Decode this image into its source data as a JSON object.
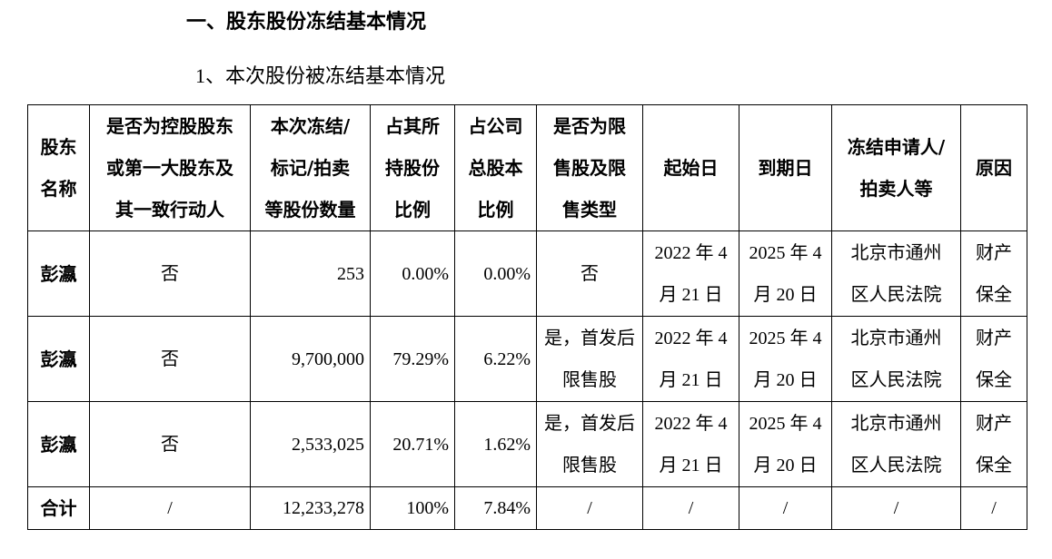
{
  "header": {
    "title": "一、股东股份冻结基本情况",
    "subtitle": "1、本次股份被冻结基本情况"
  },
  "table": {
    "columns": [
      [
        "股东",
        "名称"
      ],
      [
        "是否为控股股东",
        "或第一大股东及",
        "其一致行动人"
      ],
      [
        "本次冻结/",
        "标记/拍卖",
        "等股份数量"
      ],
      [
        "占其所",
        "持股份",
        "比例"
      ],
      [
        "占公司",
        "总股本",
        "比例"
      ],
      [
        "是否为限",
        "售股及限",
        "售类型"
      ],
      [
        "起始日"
      ],
      [
        "到期日"
      ],
      [
        "冻结申请人/",
        "拍卖人等"
      ],
      [
        "原因"
      ]
    ],
    "rows": [
      [
        [
          "彭瀛"
        ],
        [
          "否"
        ],
        [
          "253"
        ],
        [
          "0.00%"
        ],
        [
          "0.00%"
        ],
        [
          "否"
        ],
        [
          "2022 年 4",
          "月 21 日"
        ],
        [
          "2025 年 4",
          "月 20 日"
        ],
        [
          "北京市通州",
          "区人民法院"
        ],
        [
          "财产",
          "保全"
        ]
      ],
      [
        [
          "彭瀛"
        ],
        [
          "否"
        ],
        [
          "9,700,000"
        ],
        [
          "79.29%"
        ],
        [
          "6.22%"
        ],
        [
          "是，首发后",
          "限售股"
        ],
        [
          "2022 年 4",
          "月 21 日"
        ],
        [
          "2025 年 4",
          "月 20 日"
        ],
        [
          "北京市通州",
          "区人民法院"
        ],
        [
          "财产",
          "保全"
        ]
      ],
      [
        [
          "彭瀛"
        ],
        [
          "否"
        ],
        [
          "2,533,025"
        ],
        [
          "20.71%"
        ],
        [
          "1.62%"
        ],
        [
          "是，首发后",
          "限售股"
        ],
        [
          "2022 年 4",
          "月 21 日"
        ],
        [
          "2025 年 4",
          "月 20 日"
        ],
        [
          "北京市通州",
          "区人民法院"
        ],
        [
          "财产",
          "保全"
        ]
      ],
      [
        [
          "合计"
        ],
        [
          "/"
        ],
        [
          "12,233,278"
        ],
        [
          "100%"
        ],
        [
          "7.84%"
        ],
        [
          "/"
        ],
        [
          "/"
        ],
        [
          "/"
        ],
        [
          "/"
        ],
        [
          "/"
        ]
      ]
    ]
  }
}
